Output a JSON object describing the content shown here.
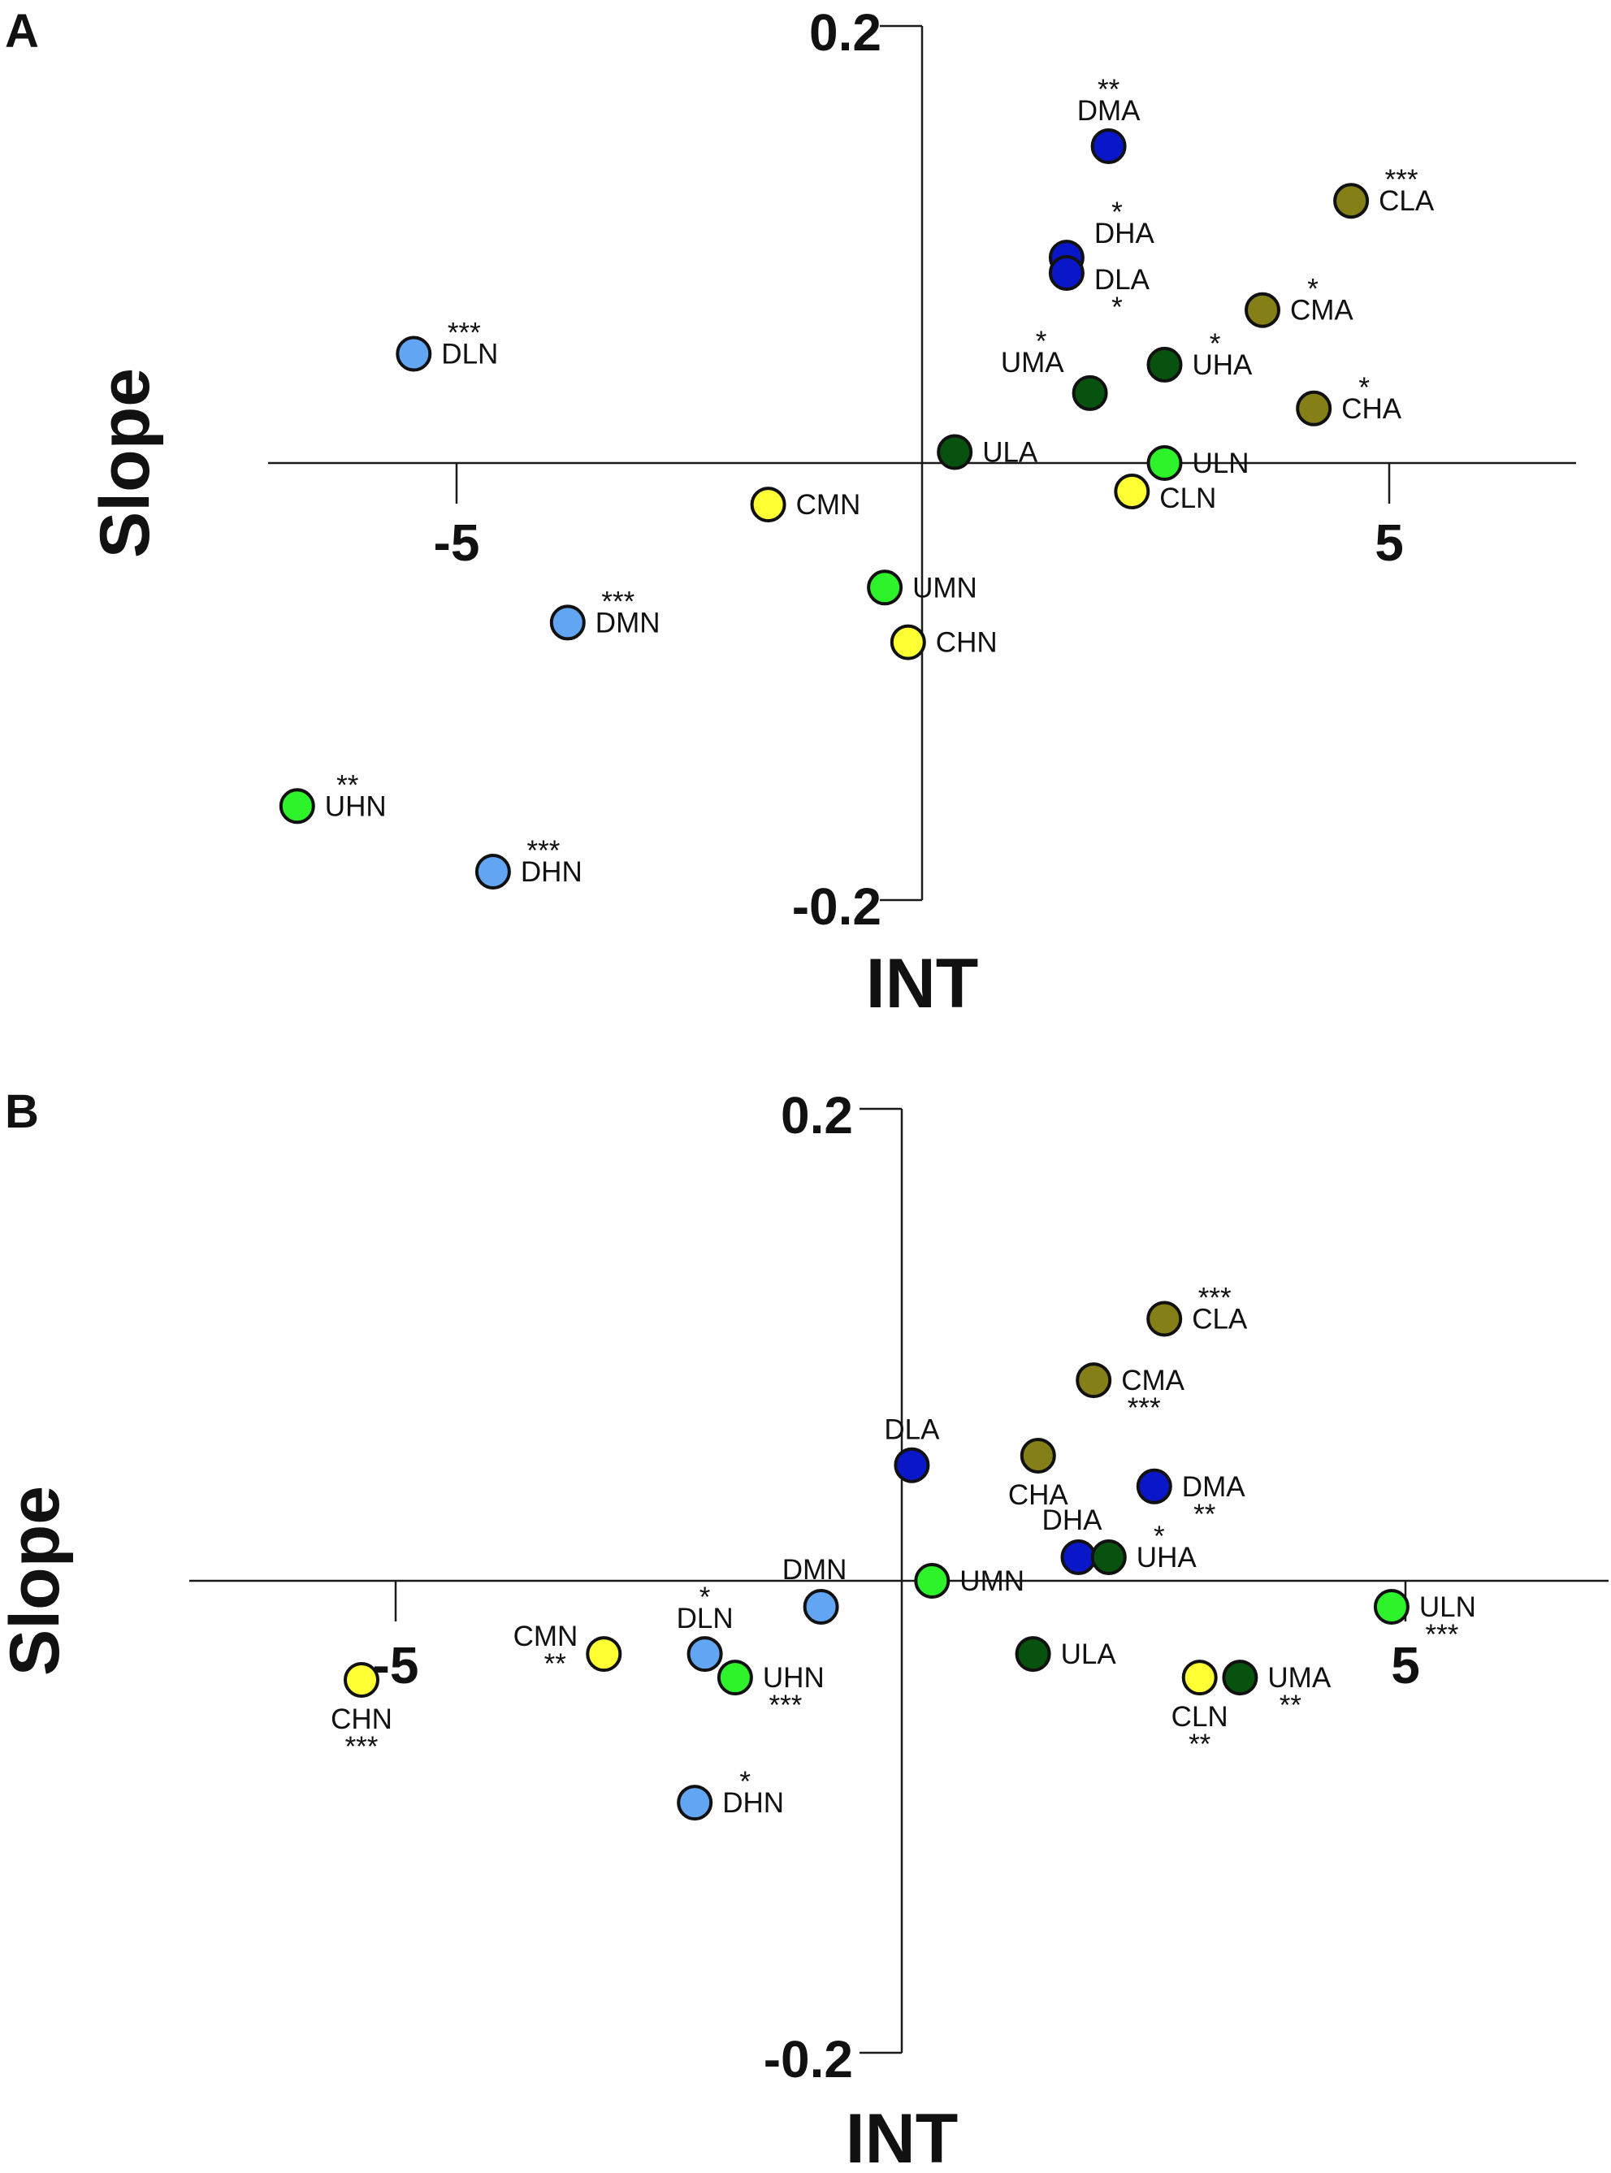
{
  "colors": {
    "CN": "#ffff33",
    "CA": "#857f18",
    "UN": "#2ef22a",
    "UA": "#08520f",
    "DN": "#62a5f2",
    "DA": "#0a17c8"
  },
  "chart_data": [
    {
      "type": "scatter",
      "panel": "A",
      "xlabel": "INT",
      "ylabel": "Slope",
      "xlim": [
        -7.1,
        7.1
      ],
      "ylim": [
        -0.2,
        0.2
      ],
      "xticks": [
        -5,
        5
      ],
      "yticks": [
        0.2,
        -0.2
      ],
      "tick_labels": {
        "x_neg": "-5",
        "x_pos": "5",
        "y_top": "0.2",
        "y_bottom": "-0.2"
      },
      "points": [
        {
          "name": "DMA",
          "x": 2.0,
          "y": 0.145,
          "group": "DA",
          "sig": "**"
        },
        {
          "name": "CLA",
          "x": 4.6,
          "y": 0.12,
          "group": "CA",
          "sig": "***"
        },
        {
          "name": "DHA",
          "x": 1.55,
          "y": 0.094,
          "group": "DA",
          "sig": "*"
        },
        {
          "name": "DLA",
          "x": 1.55,
          "y": 0.087,
          "group": "DA",
          "sig": "*"
        },
        {
          "name": "CMA",
          "x": 3.65,
          "y": 0.07,
          "group": "CA",
          "sig": "*"
        },
        {
          "name": "DLN",
          "x": -5.45,
          "y": 0.05,
          "group": "DN",
          "sig": "***"
        },
        {
          "name": "UHA",
          "x": 2.6,
          "y": 0.045,
          "group": "UA",
          "sig": "*"
        },
        {
          "name": "UMA",
          "x": 1.8,
          "y": 0.032,
          "group": "UA",
          "sig": "*"
        },
        {
          "name": "CHA",
          "x": 4.2,
          "y": 0.025,
          "group": "CA",
          "sig": "*"
        },
        {
          "name": "ULA",
          "x": 0.35,
          "y": 0.005,
          "group": "UA",
          "sig": ""
        },
        {
          "name": "ULN",
          "x": 2.6,
          "y": 0.0,
          "group": "UN",
          "sig": ""
        },
        {
          "name": "CLN",
          "x": 2.25,
          "y": -0.013,
          "group": "CN",
          "sig": ""
        },
        {
          "name": "CMN",
          "x": -1.65,
          "y": -0.019,
          "group": "CN",
          "sig": ""
        },
        {
          "name": "UMN",
          "x": -0.4,
          "y": -0.057,
          "group": "UN",
          "sig": ""
        },
        {
          "name": "DMN",
          "x": -3.8,
          "y": -0.073,
          "group": "DN",
          "sig": "***"
        },
        {
          "name": "CHN",
          "x": -0.15,
          "y": -0.082,
          "group": "CN",
          "sig": ""
        },
        {
          "name": "UHN",
          "x": -6.7,
          "y": -0.157,
          "group": "UN",
          "sig": "**"
        },
        {
          "name": "DHN",
          "x": -4.6,
          "y": -0.187,
          "group": "DN",
          "sig": "***"
        }
      ]
    },
    {
      "type": "scatter",
      "panel": "B",
      "xlabel": "INT",
      "ylabel": "Slope",
      "xlim": [
        -7.0,
        7.0
      ],
      "ylim": [
        -0.2,
        0.2
      ],
      "xticks": [
        -5,
        5
      ],
      "yticks": [
        0.2,
        -0.2
      ],
      "tick_labels": {
        "x_neg": "-5",
        "x_pos": "5",
        "y_top": "0.2",
        "y_bottom": "-0.2"
      },
      "points": [
        {
          "name": "CLA",
          "x": 2.6,
          "y": 0.111,
          "group": "CA",
          "sig": "***"
        },
        {
          "name": "CMA",
          "x": 1.9,
          "y": 0.085,
          "group": "CA",
          "sig": "***"
        },
        {
          "name": "DLA",
          "x": 0.1,
          "y": 0.049,
          "group": "DA",
          "sig": ""
        },
        {
          "name": "CHA",
          "x": 1.35,
          "y": 0.053,
          "group": "CA",
          "sig": ""
        },
        {
          "name": "DMA",
          "x": 2.5,
          "y": 0.04,
          "group": "DA",
          "sig": "**"
        },
        {
          "name": "DHA",
          "x": 1.75,
          "y": 0.01,
          "group": "DA",
          "sig": ""
        },
        {
          "name": "UHA",
          "x": 2.05,
          "y": 0.01,
          "group": "UA",
          "sig": "*"
        },
        {
          "name": "UMN",
          "x": 0.3,
          "y": 0.0,
          "group": "UN",
          "sig": ""
        },
        {
          "name": "DMN",
          "x": -0.8,
          "y": -0.011,
          "group": "DN",
          "sig": ""
        },
        {
          "name": "ULN",
          "x": 4.85,
          "y": -0.011,
          "group": "UN",
          "sig": "***"
        },
        {
          "name": "DLN",
          "x": -1.95,
          "y": -0.031,
          "group": "DN",
          "sig": "*"
        },
        {
          "name": "CMN",
          "x": -2.95,
          "y": -0.031,
          "group": "CN",
          "sig": "**"
        },
        {
          "name": "ULA",
          "x": 1.3,
          "y": -0.031,
          "group": "UA",
          "sig": ""
        },
        {
          "name": "UHN",
          "x": -1.65,
          "y": -0.041,
          "group": "UN",
          "sig": "***"
        },
        {
          "name": "CLN",
          "x": 2.95,
          "y": -0.041,
          "group": "CN",
          "sig": "**"
        },
        {
          "name": "UMA",
          "x": 3.35,
          "y": -0.041,
          "group": "UA",
          "sig": "**"
        },
        {
          "name": "CHN",
          "x": -5.35,
          "y": -0.042,
          "group": "CN",
          "sig": "***"
        },
        {
          "name": "DHN",
          "x": -2.05,
          "y": -0.094,
          "group": "DN",
          "sig": "*"
        }
      ]
    }
  ]
}
